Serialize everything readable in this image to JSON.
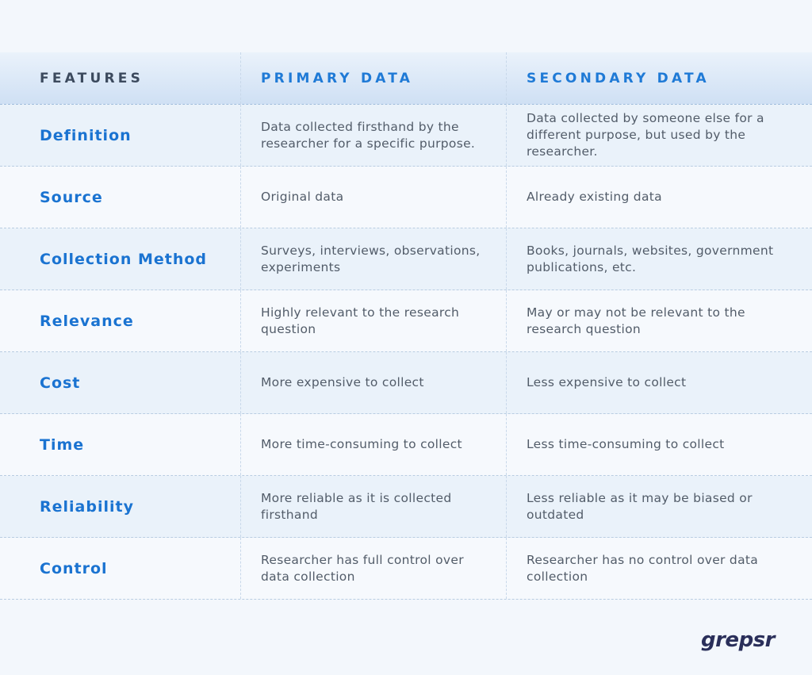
{
  "header": {
    "features": "FEATURES",
    "primary": "PRIMARY DATA",
    "secondary": "SECONDARY DATA"
  },
  "rows": [
    {
      "feature": "Definition",
      "primary": "Data collected firsthand by the researcher for a specific purpose.",
      "secondary": "Data collected by someone else for a different purpose, but used by the researcher."
    },
    {
      "feature": "Source",
      "primary": "Original data",
      "secondary": "Already existing data"
    },
    {
      "feature": "Collection Method",
      "primary": "Surveys, interviews, observations, experiments",
      "secondary": "Books, journals, websites, government publications, etc."
    },
    {
      "feature": "Relevance",
      "primary": "Highly relevant to the research question",
      "secondary": "May or may not be relevant to the research question"
    },
    {
      "feature": "Cost",
      "primary": "More expensive to collect",
      "secondary": "Less expensive to collect"
    },
    {
      "feature": "Time",
      "primary": "More time-consuming to collect",
      "secondary": "Less time-consuming to collect"
    },
    {
      "feature": "Reliability",
      "primary": "More reliable as it is collected firsthand",
      "secondary": "Less reliable as it may be biased or outdated"
    },
    {
      "feature": "Control",
      "primary": "Researcher has full control over data collection",
      "secondary": "Researcher has no control over data collection"
    }
  ],
  "brand": {
    "logo_text": "grepsr"
  },
  "colors": {
    "accent": "#1a73d1",
    "header_dark": "#3c4a5e",
    "logo": "#2a2f5a"
  }
}
